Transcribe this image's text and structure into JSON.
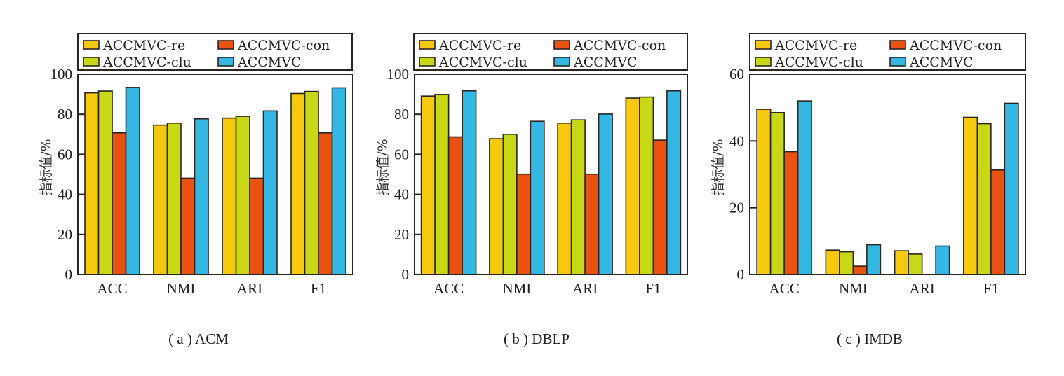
{
  "chart_data": [
    {
      "type": "bar",
      "caption": "( a ) ACM",
      "title": "",
      "xlabel": "",
      "ylabel": "指标值/%",
      "ylim": [
        0,
        100
      ],
      "yticks": [
        0,
        20,
        40,
        60,
        80,
        100
      ],
      "grid": false,
      "legend": "top",
      "categories": [
        "ACC",
        "NMI",
        "ARI",
        "F1"
      ],
      "series": [
        {
          "name": "ACCMVC-re",
          "color": "#f5c90f",
          "values": [
            90.7,
            74.6,
            78.1,
            90.4
          ]
        },
        {
          "name": "ACCMVC-clu",
          "color": "#c8d816",
          "values": [
            91.6,
            75.6,
            79.0,
            91.4
          ]
        },
        {
          "name": "ACCMVC-con",
          "color": "#e85313",
          "values": [
            70.7,
            48.1,
            48.1,
            70.7
          ]
        },
        {
          "name": "ACCMVC",
          "color": "#35b7e4",
          "values": [
            93.4,
            77.7,
            81.7,
            93.2
          ]
        }
      ]
    },
    {
      "type": "bar",
      "caption": "( b ) DBLP",
      "title": "",
      "xlabel": "",
      "ylabel": "指标值/%",
      "ylim": [
        0,
        100
      ],
      "yticks": [
        0,
        20,
        40,
        60,
        80,
        100
      ],
      "grid": false,
      "legend": "top",
      "categories": [
        "ACC",
        "NMI",
        "ARI",
        "F1"
      ],
      "series": [
        {
          "name": "ACCMVC-re",
          "color": "#f5c90f",
          "values": [
            89.1,
            67.8,
            75.6,
            88.1
          ]
        },
        {
          "name": "ACCMVC-clu",
          "color": "#c8d816",
          "values": [
            89.9,
            70.0,
            77.2,
            88.6
          ]
        },
        {
          "name": "ACCMVC-con",
          "color": "#e85313",
          "values": [
            68.7,
            50.1,
            50.1,
            67.1
          ]
        },
        {
          "name": "ACCMVC",
          "color": "#35b7e4",
          "values": [
            91.7,
            76.5,
            80.1,
            91.7
          ]
        }
      ]
    },
    {
      "type": "bar",
      "caption": "( c ) IMDB",
      "title": "",
      "xlabel": "",
      "ylabel": "指标值/%",
      "ylim": [
        0,
        60
      ],
      "yticks": [
        0,
        20,
        40,
        60
      ],
      "grid": false,
      "legend": "top",
      "categories": [
        "ACC",
        "NMI",
        "ARI",
        "F1"
      ],
      "series": [
        {
          "name": "ACCMVC-re",
          "color": "#f5c90f",
          "values": [
            49.5,
            7.3,
            7.1,
            47.1
          ]
        },
        {
          "name": "ACCMVC-clu",
          "color": "#c8d816",
          "values": [
            48.5,
            6.8,
            6.1,
            45.2
          ]
        },
        {
          "name": "ACCMVC-con",
          "color": "#e85313",
          "values": [
            36.8,
            2.5,
            0.0,
            31.3
          ]
        },
        {
          "name": "ACCMVC",
          "color": "#35b7e4",
          "values": [
            52.0,
            8.9,
            8.5,
            51.3
          ]
        }
      ]
    }
  ]
}
